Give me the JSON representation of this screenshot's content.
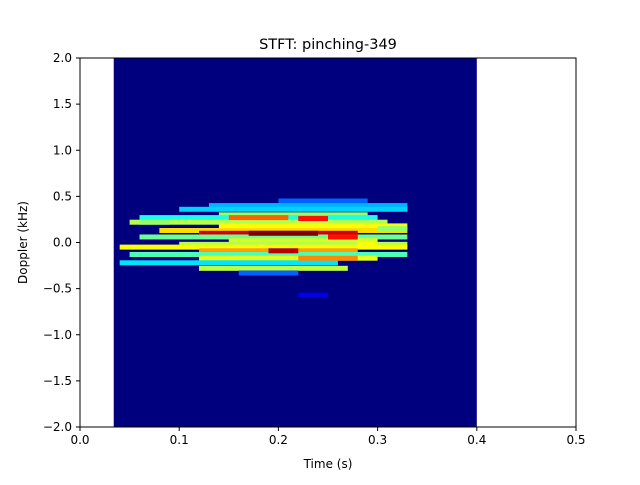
{
  "chart_data": {
    "type": "heatmap",
    "title": "STFT: pinching-349",
    "xlabel": "Time (s)",
    "ylabel": "Doppler (kHz)",
    "xlim": [
      0.0,
      0.5
    ],
    "ylim": [
      -2.0,
      2.0
    ],
    "xticks": [
      "0.0",
      "0.1",
      "0.2",
      "0.3",
      "0.4",
      "0.5"
    ],
    "xtick_values": [
      0.0,
      0.1,
      0.2,
      0.3,
      0.4,
      0.5
    ],
    "yticks": [
      "2.0",
      "1.5",
      "1.0",
      "0.5",
      "0.0",
      "−0.5",
      "−1.0",
      "−1.5",
      "−2.0"
    ],
    "ytick_values": [
      2.0,
      1.5,
      1.0,
      0.5,
      0.0,
      -0.5,
      -1.0,
      -1.5,
      -2.0
    ],
    "colormap": "jet",
    "background_color": "#00007f",
    "time_extent": [
      0.034,
      0.4
    ],
    "doppler_extent": [
      -2.0,
      2.0
    ],
    "grid": false,
    "bands": [
      {
        "doppler": 0.45,
        "t_start": 0.2,
        "t_end": 0.29,
        "intensity": 0.22
      },
      {
        "doppler": 0.4,
        "t_start": 0.13,
        "t_end": 0.33,
        "intensity": 0.3
      },
      {
        "doppler": 0.36,
        "t_start": 0.1,
        "t_end": 0.33,
        "intensity": 0.33
      },
      {
        "doppler": 0.3,
        "t_start": 0.14,
        "t_end": 0.29,
        "intensity": 0.52
      },
      {
        "doppler": 0.27,
        "t_start": 0.06,
        "t_end": 0.3,
        "intensity": 0.4
      },
      {
        "doppler": 0.22,
        "t_start": 0.05,
        "t_end": 0.31,
        "intensity": 0.55
      },
      {
        "doppler": 0.18,
        "t_start": 0.14,
        "t_end": 0.33,
        "intensity": 0.62
      },
      {
        "doppler": 0.13,
        "t_start": 0.08,
        "t_end": 0.33,
        "intensity": 0.66
      },
      {
        "doppler": 0.1,
        "t_start": 0.12,
        "t_end": 0.28,
        "intensity": 0.92
      },
      {
        "doppler": 0.06,
        "t_start": 0.06,
        "t_end": 0.33,
        "intensity": 0.48
      },
      {
        "doppler": 0.02,
        "t_start": 0.15,
        "t_end": 0.3,
        "intensity": 0.58
      },
      {
        "doppler": -0.02,
        "t_start": 0.1,
        "t_end": 0.33,
        "intensity": 0.55
      },
      {
        "doppler": -0.05,
        "t_start": 0.04,
        "t_end": 0.33,
        "intensity": 0.62
      },
      {
        "doppler": -0.09,
        "t_start": 0.12,
        "t_end": 0.28,
        "intensity": 0.72
      },
      {
        "doppler": -0.13,
        "t_start": 0.05,
        "t_end": 0.33,
        "intensity": 0.45
      },
      {
        "doppler": -0.17,
        "t_start": 0.12,
        "t_end": 0.3,
        "intensity": 0.6
      },
      {
        "doppler": -0.22,
        "t_start": 0.04,
        "t_end": 0.26,
        "intensity": 0.35
      },
      {
        "doppler": -0.28,
        "t_start": 0.12,
        "t_end": 0.27,
        "intensity": 0.56
      },
      {
        "doppler": -0.33,
        "t_start": 0.16,
        "t_end": 0.22,
        "intensity": 0.22
      },
      {
        "doppler": -0.57,
        "t_start": 0.22,
        "t_end": 0.25,
        "intensity": 0.1
      }
    ],
    "hotspots": [
      {
        "doppler": 0.27,
        "t_start": 0.15,
        "t_end": 0.21,
        "intensity": 0.78
      },
      {
        "doppler": 0.26,
        "t_start": 0.22,
        "t_end": 0.25,
        "intensity": 0.86
      },
      {
        "doppler": 0.1,
        "t_start": 0.17,
        "t_end": 0.24,
        "intensity": 1.0
      },
      {
        "doppler": 0.06,
        "t_start": 0.25,
        "t_end": 0.28,
        "intensity": 0.86
      },
      {
        "doppler": -0.09,
        "t_start": 0.19,
        "t_end": 0.22,
        "intensity": 0.95
      },
      {
        "doppler": -0.02,
        "t_start": 0.28,
        "t_end": 0.3,
        "intensity": 0.62
      },
      {
        "doppler": -0.17,
        "t_start": 0.22,
        "t_end": 0.28,
        "intensity": 0.74
      },
      {
        "doppler": 0.15,
        "t_start": 0.3,
        "t_end": 0.33,
        "intensity": 0.52
      },
      {
        "doppler": 0.22,
        "t_start": 0.06,
        "t_end": 0.09,
        "intensity": 0.52
      }
    ]
  }
}
